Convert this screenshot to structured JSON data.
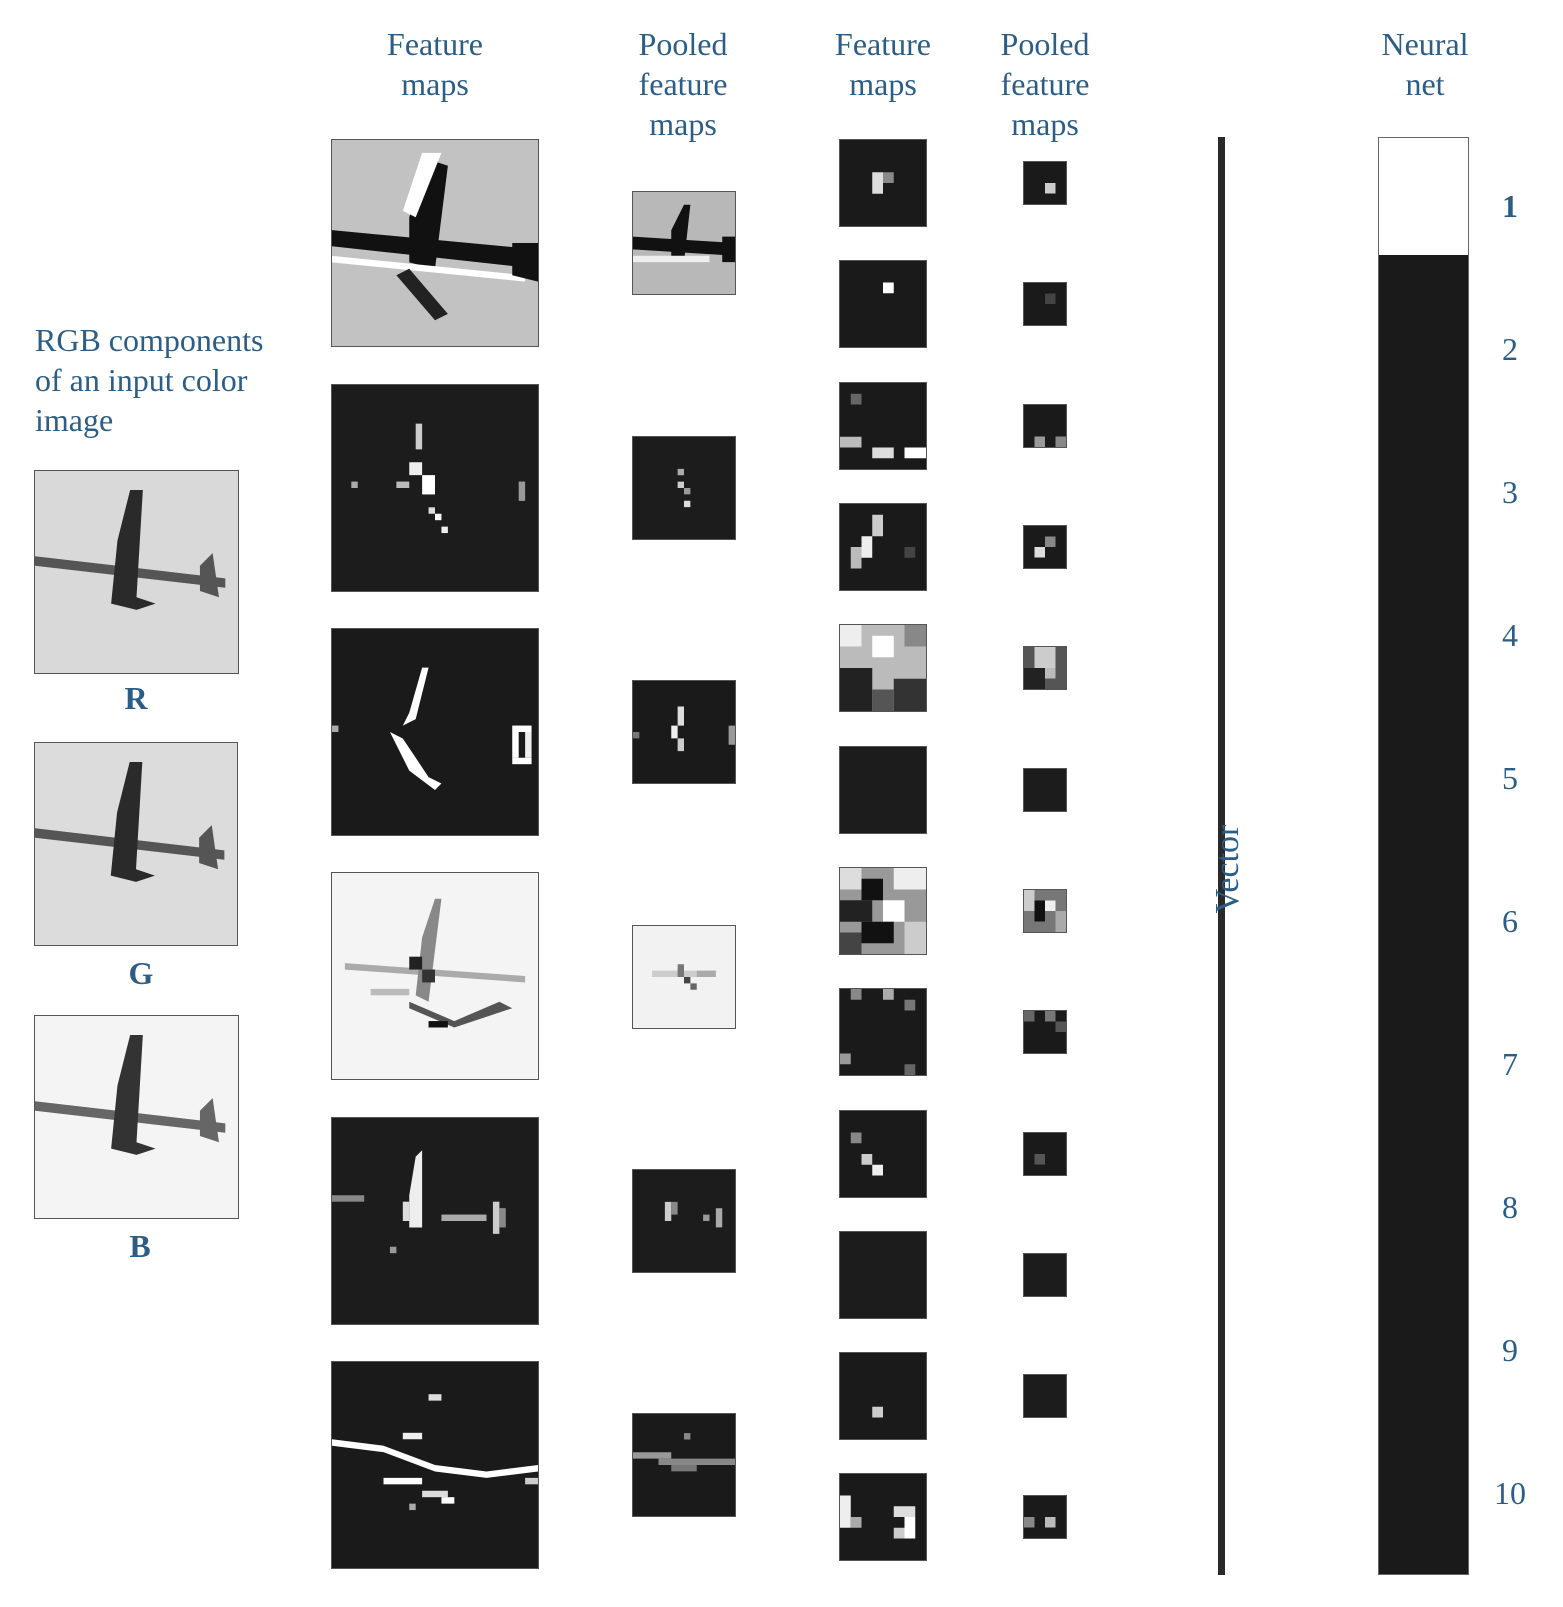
{
  "headers": {
    "feature_maps_1": "Feature\nmaps",
    "pooled_1": "Pooled\nfeature\nmaps",
    "feature_maps_2": "Feature\nmaps",
    "pooled_2": "Pooled\nfeature\nmaps",
    "neural_net": "Neural\nnet"
  },
  "input_caption": "RGB components\nof an input color\nimage",
  "channels": [
    "R",
    "G",
    "B"
  ],
  "vector_label": "Vector",
  "neural_net_outputs": [
    "1",
    "2",
    "3",
    "4",
    "5",
    "6",
    "7",
    "8",
    "9",
    "10"
  ],
  "neural_net_active_output": "1"
}
